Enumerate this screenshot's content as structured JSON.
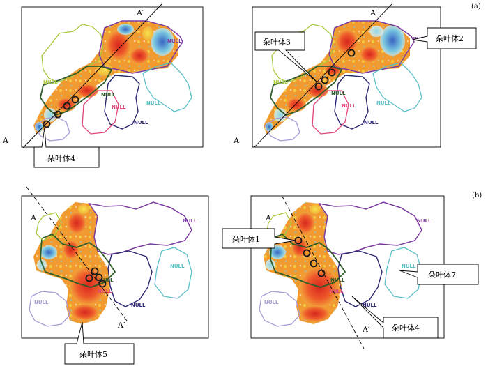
{
  "figure": {
    "panel_labels": [
      "(a)",
      "(b)"
    ],
    "section_line_labels": {
      "start": "A",
      "end": "A′"
    },
    "null_label": "NULL",
    "callouts": {
      "lobe1": "朵叶体1",
      "lobe2": "朵叶体2",
      "lobe3": "朵叶体3",
      "lobe4": "朵叶体4",
      "lobe5": "朵叶体5",
      "lobe7": "朵叶体7"
    },
    "colors": {
      "frame": "#000000",
      "low_amplitude": "#3b6fc9",
      "mid_low": "#7fd0e6",
      "mid": "#f4e04d",
      "mid_high": "#f29a2e",
      "high_amplitude": "#e0322a",
      "polygon_green_light": "#a8c83c",
      "polygon_green_dark": "#2f5d2a",
      "polygon_purple": "#7a3a9e",
      "polygon_navy": "#2a2670",
      "polygon_pink": "#e0457a",
      "polygon_cyan": "#5bbfc8",
      "polygon_lavender": "#a79ad6"
    }
  }
}
